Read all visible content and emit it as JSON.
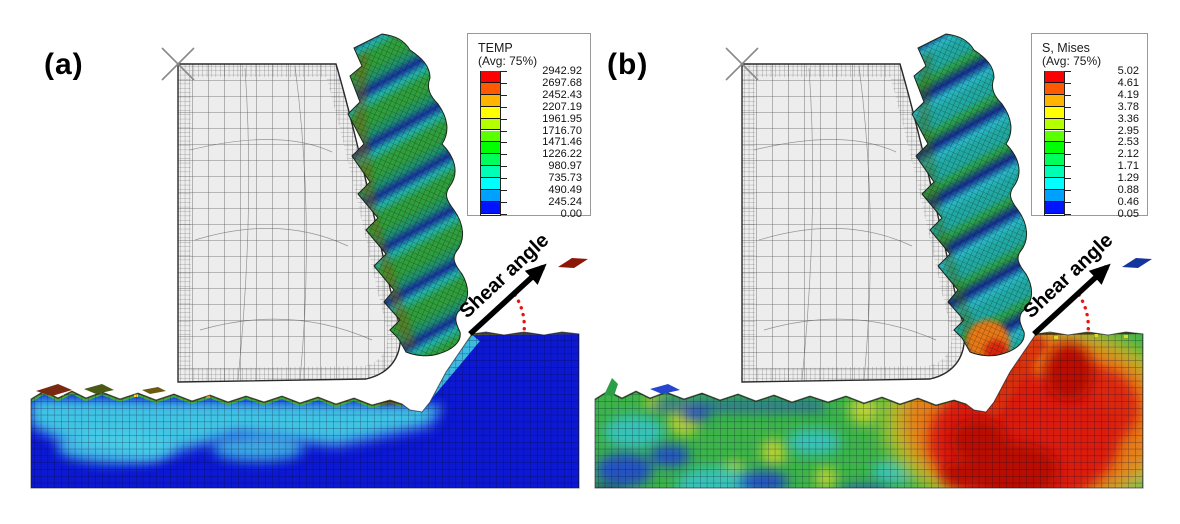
{
  "figure": {
    "background": "#ffffff",
    "panels": [
      {
        "label": "(a)",
        "annotation": "Shear angle",
        "legend": {
          "title": "TEMP",
          "subtitle": "(Avg: 75%)",
          "values": [
            "2942.92",
            "2697.68",
            "2452.43",
            "2207.19",
            "1961.95",
            "1716.70",
            "1471.46",
            "1226.22",
            "980.97",
            "735.73",
            "490.49",
            "245.24",
            "0.00"
          ]
        }
      },
      {
        "label": "(b)",
        "annotation": "Shear angle",
        "legend": {
          "title": "S, Mises",
          "subtitle": "(Avg: 75%)",
          "values": [
            "5.02",
            "4.61",
            "4.19",
            "3.78",
            "3.36",
            "2.95",
            "2.53",
            "2.12",
            "1.71",
            "1.29",
            "0.88",
            "0.46",
            "0.05"
          ]
        }
      }
    ],
    "legend_colors": [
      "#ff0000",
      "#ff5a00",
      "#ffb400",
      "#ffff00",
      "#b4ff00",
      "#5aff00",
      "#00ff00",
      "#00ff5a",
      "#00ffb4",
      "#00ffff",
      "#00a0ff",
      "#0014ff"
    ],
    "annotation_colors": {
      "arrow": "#000000",
      "angle_dots": "#f01010"
    }
  }
}
